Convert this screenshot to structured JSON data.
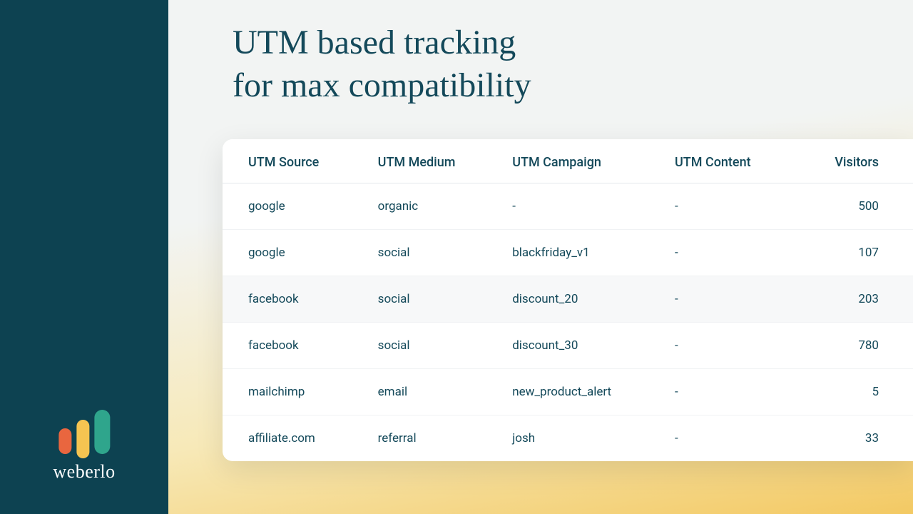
{
  "brand": {
    "name": "weberlo",
    "logo_colors": {
      "bar1": "#e9663f",
      "bar2": "#f5c451",
      "bar3": "#2fa58c"
    },
    "sidebar_bg": "#0d4251"
  },
  "headline": {
    "line1": "UTM based tracking",
    "line2": "for max compatibility",
    "color": "#14495a",
    "font_size": 48
  },
  "table": {
    "type": "table",
    "header_color": "#14495a",
    "cell_color": "#14495a",
    "card_bg": "#ffffff",
    "alt_row_bg": "#f7f8f9",
    "border_color": "#e4e8eb",
    "columns": [
      {
        "key": "source",
        "label": "UTM Source",
        "align": "left"
      },
      {
        "key": "medium",
        "label": "UTM Medium",
        "align": "left"
      },
      {
        "key": "campaign",
        "label": "UTM Campaign",
        "align": "left"
      },
      {
        "key": "content",
        "label": "UTM Content",
        "align": "left"
      },
      {
        "key": "visitors",
        "label": "Visitors",
        "align": "right"
      }
    ],
    "rows": [
      {
        "source": "google",
        "medium": "organic",
        "campaign": "-",
        "content": "-",
        "visitors": "500"
      },
      {
        "source": "google",
        "medium": "social",
        "campaign": "blackfriday_v1",
        "content": "-",
        "visitors": "107"
      },
      {
        "source": "facebook",
        "medium": "social",
        "campaign": "discount_20",
        "content": "-",
        "visitors": "203"
      },
      {
        "source": "facebook",
        "medium": "social",
        "campaign": "discount_30",
        "content": "-",
        "visitors": "780"
      },
      {
        "source": "mailchimp",
        "medium": "email",
        "campaign": "new_product_alert",
        "content": "-",
        "visitors": "5"
      },
      {
        "source": "affiliate.com",
        "medium": "referral",
        "campaign": "josh",
        "content": "-",
        "visitors": "33"
      }
    ]
  },
  "background": {
    "gradient_from": "#f2f4f3",
    "gradient_mid": "#f7e9b8",
    "gradient_to": "#f3c963"
  }
}
